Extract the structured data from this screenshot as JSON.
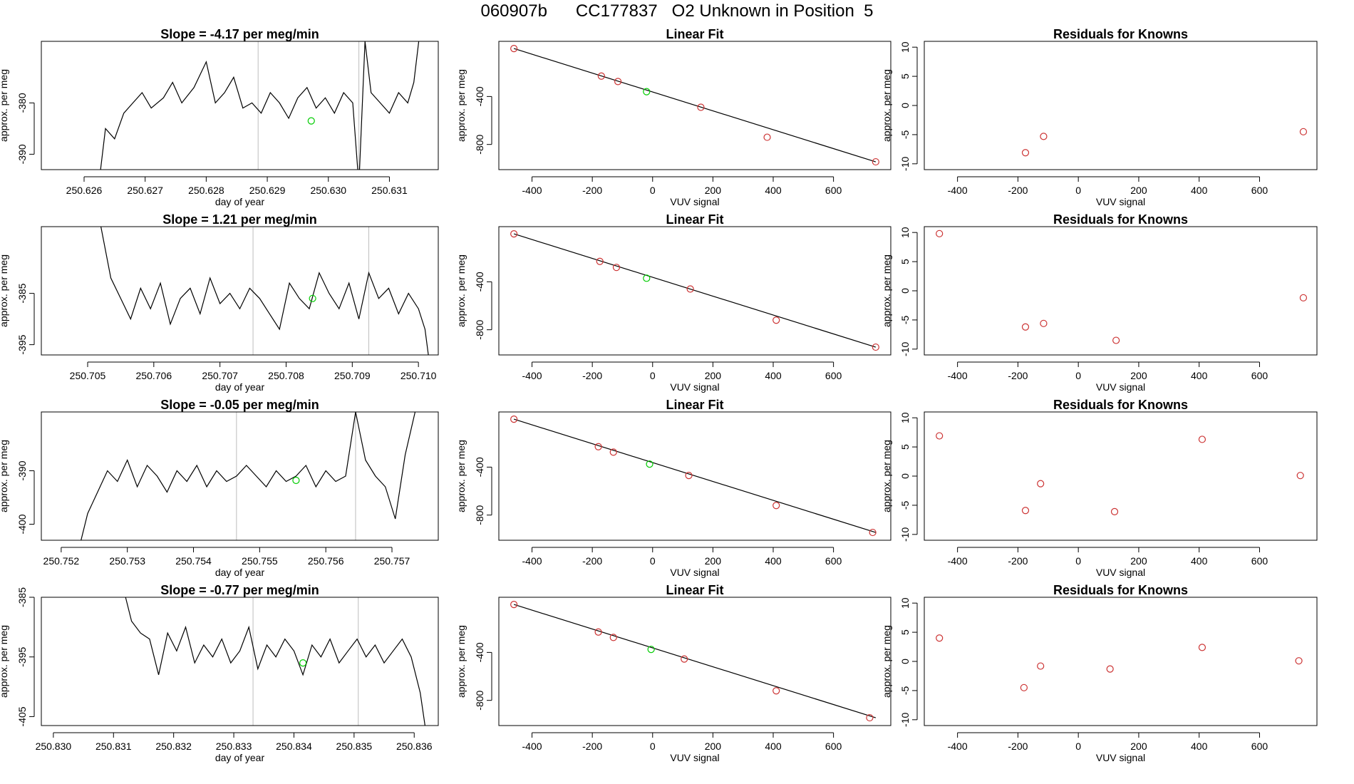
{
  "header": {
    "title": "060907b      CC177837   O2 Unknown in Position  5"
  },
  "colors": {
    "series_line": "#000000",
    "guide_line": "#bdbdbd",
    "unknown_point": "#00cc00",
    "known_point": "#cc3333",
    "axis": "#000000"
  },
  "chart_data": [
    {
      "type": "line",
      "panel": "timeseries",
      "row": 0,
      "title": "Slope =  -4.17  per meg/min",
      "xlabel": "day of year",
      "ylabel": "approx. per meg",
      "xlim": [
        250.6253,
        250.6318
      ],
      "ylim": [
        -393,
        -368
      ],
      "x_ticks": [
        "250.626",
        "250.627",
        "250.628",
        "250.629",
        "250.630",
        "250.631"
      ],
      "x_tick_values": [
        250.626,
        250.627,
        250.628,
        250.629,
        250.63,
        250.631
      ],
      "y_ticks": [
        "-390",
        "-380"
      ],
      "y_tick_values": [
        -390,
        -380
      ],
      "vlines": [
        250.62885,
        250.6305
      ],
      "x": [
        250.62625,
        250.62635,
        250.6265,
        250.62665,
        250.6268,
        250.62695,
        250.6271,
        250.6273,
        250.62745,
        250.6276,
        250.6278,
        250.628,
        250.62815,
        250.6283,
        250.62845,
        250.6286,
        250.62875,
        250.6289,
        250.62905,
        250.6292,
        250.62935,
        250.6295,
        250.62965,
        250.6298,
        250.62995,
        250.6301,
        250.63025,
        250.6304,
        250.6305,
        250.6306,
        250.6307,
        250.63085,
        250.631,
        250.63115,
        250.6313,
        250.6314,
        250.63148
      ],
      "values": [
        -395,
        -385,
        -387,
        -382,
        -380,
        -378,
        -381,
        -379,
        -376,
        -380,
        -377,
        -372,
        -380,
        -378,
        -375,
        -381,
        -380,
        -382,
        -378,
        -380,
        -383,
        -379,
        -377,
        -381,
        -379,
        -382,
        -378,
        -380,
        -396,
        -368,
        -378,
        -380,
        -382,
        -378,
        -380,
        -376,
        -368
      ],
      "unknown_point": {
        "x": 250.62972,
        "y": -383.5
      }
    },
    {
      "type": "line",
      "panel": "timeseries",
      "row": 1,
      "title": "Slope =  1.21  per meg/min",
      "xlabel": "day of year",
      "ylabel": "approx. per meg",
      "xlim": [
        250.7043,
        250.7103
      ],
      "ylim": [
        -397,
        -372
      ],
      "x_ticks": [
        "250.705",
        "250.706",
        "250.707",
        "250.708",
        "250.709",
        "250.710"
      ],
      "x_tick_values": [
        250.705,
        250.706,
        250.707,
        250.708,
        250.709,
        250.71
      ],
      "y_ticks": [
        "-395",
        "-385"
      ],
      "y_tick_values": [
        -395,
        -385
      ],
      "vlines": [
        250.7075,
        250.70925
      ],
      "x": [
        250.7052,
        250.70535,
        250.7055,
        250.70565,
        250.7058,
        250.70595,
        250.7061,
        250.70625,
        250.7064,
        250.70655,
        250.7067,
        250.70685,
        250.707,
        250.70715,
        250.7073,
        250.70745,
        250.7076,
        250.70775,
        250.7079,
        250.70805,
        250.7082,
        250.70835,
        250.7085,
        250.70865,
        250.7088,
        250.70895,
        250.7091,
        250.70925,
        250.7094,
        250.70955,
        250.7097,
        250.70985,
        250.71,
        250.7101,
        250.71015
      ],
      "values": [
        -372,
        -382,
        -386,
        -390,
        -384,
        -388,
        -383,
        -391,
        -386,
        -384,
        -389,
        -382,
        -387,
        -385,
        -388,
        -384,
        -386,
        -389,
        -392,
        -383,
        -386,
        -388,
        -381,
        -385,
        -388,
        -383,
        -390,
        -381,
        -386,
        -384,
        -389,
        -385,
        -388,
        -392,
        -397
      ],
      "unknown_point": {
        "x": 250.7084,
        "y": -386
      }
    },
    {
      "type": "line",
      "panel": "timeseries",
      "row": 2,
      "title": "Slope =  -0.05  per meg/min",
      "xlabel": "day of year",
      "ylabel": "approx. per meg",
      "xlim": [
        250.7517,
        250.7577
      ],
      "ylim": [
        -403,
        -379
      ],
      "x_ticks": [
        "250.752",
        "250.753",
        "250.754",
        "250.755",
        "250.756",
        "250.757"
      ],
      "x_tick_values": [
        250.752,
        250.753,
        250.754,
        250.755,
        250.756,
        250.757
      ],
      "y_ticks": [
        "-400",
        "-390"
      ],
      "y_tick_values": [
        -400,
        -390
      ],
      "vlines": [
        250.75465,
        250.75645
      ],
      "x": [
        250.7523,
        250.7524,
        250.75255,
        250.7527,
        250.75285,
        250.753,
        250.75315,
        250.7533,
        250.75345,
        250.7536,
        250.75375,
        250.7539,
        250.75405,
        250.7542,
        250.75435,
        250.7545,
        250.75465,
        250.7548,
        250.75495,
        250.7551,
        250.75525,
        250.7554,
        250.75555,
        250.7557,
        250.75585,
        250.756,
        250.75615,
        250.7563,
        250.75645,
        250.7566,
        250.75675,
        250.7569,
        250.75705,
        250.7572,
        250.75735
      ],
      "values": [
        -403,
        -398,
        -394,
        -390,
        -392,
        -388,
        -393,
        -389,
        -391,
        -394,
        -390,
        -392,
        -389,
        -393,
        -390,
        -392,
        -391,
        -389,
        -391,
        -393,
        -390,
        -392,
        -391,
        -389,
        -393,
        -390,
        -392,
        -391,
        -379,
        -388,
        -391,
        -393,
        -399,
        -387,
        -379
      ],
      "unknown_point": {
        "x": 250.75555,
        "y": -391.8
      }
    },
    {
      "type": "line",
      "panel": "timeseries",
      "row": 3,
      "title": "Slope =  -0.77  per meg/min",
      "xlabel": "day of year",
      "ylabel": "approx. per meg",
      "xlim": [
        250.8298,
        250.8364
      ],
      "ylim": [
        -406.5,
        -385
      ],
      "x_ticks": [
        "250.830",
        "250.831",
        "250.832",
        "250.833",
        "250.834",
        "250.835",
        "250.836"
      ],
      "x_tick_values": [
        250.83,
        250.831,
        250.832,
        250.833,
        250.834,
        250.835,
        250.836
      ],
      "y_ticks": [
        "-405",
        "-395",
        "-385"
      ],
      "y_tick_values": [
        -405,
        -395,
        -385
      ],
      "vlines": [
        250.83332,
        250.83507
      ],
      "x": [
        250.8312,
        250.8313,
        250.83145,
        250.8316,
        250.83175,
        250.8319,
        250.83205,
        250.8322,
        250.83235,
        250.8325,
        250.83265,
        250.8328,
        250.83295,
        250.8331,
        250.83325,
        250.8334,
        250.83355,
        250.8337,
        250.83385,
        250.834,
        250.83415,
        250.8343,
        250.83445,
        250.8346,
        250.83475,
        250.8349,
        250.83505,
        250.8352,
        250.83535,
        250.8355,
        250.83565,
        250.8358,
        250.83595,
        250.8361,
        250.83618
      ],
      "values": [
        -385,
        -389,
        -391,
        -392,
        -398,
        -391,
        -394,
        -390,
        -396,
        -393,
        -395,
        -392,
        -396,
        -394,
        -390,
        -397,
        -393,
        -395,
        -392,
        -394,
        -398,
        -393,
        -395,
        -392,
        -396,
        -394,
        -392,
        -395,
        -393,
        -396,
        -394,
        -392,
        -395,
        -401,
        -406.5
      ],
      "unknown_point": {
        "x": 250.83415,
        "y": -396
      }
    },
    {
      "type": "scatter",
      "panel": "linear_fit",
      "row": 0,
      "title": "Linear Fit",
      "xlabel": "VUV signal",
      "ylabel": "approx. per meg",
      "xlim": [
        -510,
        790
      ],
      "ylim": [
        -1010,
        60
      ],
      "x_ticks": [
        "-400",
        "-200",
        "0",
        "200",
        "400",
        "600"
      ],
      "x_tick_values": [
        -400,
        -200,
        0,
        200,
        400,
        600
      ],
      "y_ticks": [
        "-800",
        "-400"
      ],
      "y_tick_values": [
        -800,
        -400
      ],
      "fit_line": {
        "x": [
          -460,
          740
        ],
        "y": [
          0,
          -945
        ]
      },
      "known_points": {
        "x": [
          -460,
          -170,
          -115,
          160,
          380,
          740
        ],
        "y": [
          0,
          -230,
          -275,
          -490,
          -740,
          -945
        ]
      },
      "unknown_point": {
        "x": -20,
        "y": -360
      }
    },
    {
      "type": "scatter",
      "panel": "linear_fit",
      "row": 1,
      "title": "Linear Fit",
      "xlabel": "VUV signal",
      "ylabel": "approx. per meg",
      "xlim": [
        -510,
        790
      ],
      "ylim": [
        -1010,
        60
      ],
      "x_ticks": [
        "-400",
        "-200",
        "0",
        "200",
        "400",
        "600"
      ],
      "x_tick_values": [
        -400,
        -200,
        0,
        200,
        400,
        600
      ],
      "y_ticks": [
        "-800",
        "-400"
      ],
      "y_tick_values": [
        -800,
        -400
      ],
      "fit_line": {
        "x": [
          -460,
          740
        ],
        "y": [
          0,
          -945
        ]
      },
      "known_points": {
        "x": [
          -460,
          -175,
          -120,
          125,
          410,
          740
        ],
        "y": [
          0,
          -230,
          -280,
          -460,
          -720,
          -945
        ]
      },
      "unknown_point": {
        "x": -20,
        "y": -370
      }
    },
    {
      "type": "scatter",
      "panel": "linear_fit",
      "row": 2,
      "title": "Linear Fit",
      "xlabel": "VUV signal",
      "ylabel": "approx. per meg",
      "xlim": [
        -510,
        790
      ],
      "ylim": [
        -1010,
        60
      ],
      "x_ticks": [
        "-400",
        "-200",
        "0",
        "200",
        "400",
        "600"
      ],
      "x_tick_values": [
        -400,
        -200,
        0,
        200,
        400,
        600
      ],
      "y_ticks": [
        "-800",
        "-400"
      ],
      "y_tick_values": [
        -800,
        -400
      ],
      "fit_line": {
        "x": [
          -460,
          740
        ],
        "y": [
          0,
          -945
        ]
      },
      "known_points": {
        "x": [
          -460,
          -180,
          -130,
          120,
          410,
          730
        ],
        "y": [
          0,
          -230,
          -275,
          -470,
          -720,
          -945
        ]
      },
      "unknown_point": {
        "x": -10,
        "y": -375
      }
    },
    {
      "type": "scatter",
      "panel": "linear_fit",
      "row": 3,
      "title": "Linear Fit",
      "xlabel": "VUV signal",
      "ylabel": "approx. per meg",
      "xlim": [
        -510,
        790
      ],
      "ylim": [
        -1010,
        60
      ],
      "x_ticks": [
        "-400",
        "-200",
        "0",
        "200",
        "400",
        "600"
      ],
      "x_tick_values": [
        -400,
        -200,
        0,
        200,
        400,
        600
      ],
      "y_ticks": [
        "-800",
        "-400"
      ],
      "y_tick_values": [
        -800,
        -400
      ],
      "fit_line": {
        "x": [
          -460,
          740
        ],
        "y": [
          0,
          -945
        ]
      },
      "known_points": {
        "x": [
          -460,
          -180,
          -130,
          105,
          410,
          720
        ],
        "y": [
          0,
          -230,
          -275,
          -455,
          -720,
          -945
        ]
      },
      "unknown_point": {
        "x": -5,
        "y": -375
      }
    },
    {
      "type": "scatter",
      "panel": "residuals",
      "row": 0,
      "title": "Residuals for Knowns",
      "xlabel": "VUV signal",
      "ylabel": "approx. per meg",
      "xlim": [
        -510,
        790
      ],
      "ylim": [
        -11,
        11
      ],
      "x_ticks": [
        "-400",
        "-200",
        "0",
        "200",
        "400",
        "600"
      ],
      "x_tick_values": [
        -400,
        -200,
        0,
        200,
        400,
        600
      ],
      "y_ticks": [
        "-10",
        "-5",
        "0",
        "5",
        "10"
      ],
      "y_tick_values": [
        -10,
        -5,
        0,
        5,
        10
      ],
      "points": {
        "x": [
          -175,
          -115,
          745
        ],
        "y": [
          -8.1,
          -5.3,
          -4.5
        ]
      }
    },
    {
      "type": "scatter",
      "panel": "residuals",
      "row": 1,
      "title": "Residuals for Knowns",
      "xlabel": "VUV signal",
      "ylabel": "approx. per meg",
      "xlim": [
        -510,
        790
      ],
      "ylim": [
        -11,
        11
      ],
      "x_ticks": [
        "-400",
        "-200",
        "0",
        "200",
        "400",
        "600"
      ],
      "x_tick_values": [
        -400,
        -200,
        0,
        200,
        400,
        600
      ],
      "y_ticks": [
        "-10",
        "-5",
        "0",
        "5",
        "10"
      ],
      "y_tick_values": [
        -10,
        -5,
        0,
        5,
        10
      ],
      "points": {
        "x": [
          -460,
          -175,
          -115,
          125,
          745
        ],
        "y": [
          9.8,
          -6.2,
          -5.6,
          -8.5,
          -1.2
        ]
      }
    },
    {
      "type": "scatter",
      "panel": "residuals",
      "row": 2,
      "title": "Residuals for Knowns",
      "xlabel": "VUV signal",
      "ylabel": "approx. per meg",
      "xlim": [
        -510,
        790
      ],
      "ylim": [
        -11,
        11
      ],
      "x_ticks": [
        "-400",
        "-200",
        "0",
        "200",
        "400",
        "600"
      ],
      "x_tick_values": [
        -400,
        -200,
        0,
        200,
        400,
        600
      ],
      "y_ticks": [
        "-10",
        "-5",
        "0",
        "5",
        "10"
      ],
      "y_tick_values": [
        -10,
        -5,
        0,
        5,
        10
      ],
      "points": {
        "x": [
          -460,
          -175,
          -125,
          120,
          410,
          735
        ],
        "y": [
          6.9,
          -5.9,
          -1.3,
          -6.1,
          6.3,
          0.1
        ]
      }
    },
    {
      "type": "scatter",
      "panel": "residuals",
      "row": 3,
      "title": "Residuals for Knowns",
      "xlabel": "VUV signal",
      "ylabel": "approx. per meg",
      "xlim": [
        -510,
        790
      ],
      "ylim": [
        -11,
        11
      ],
      "x_ticks": [
        "-400",
        "-200",
        "0",
        "200",
        "400",
        "600"
      ],
      "x_tick_values": [
        -400,
        -200,
        0,
        200,
        400,
        600
      ],
      "y_ticks": [
        "-10",
        "-5",
        "0",
        "5",
        "10"
      ],
      "y_tick_values": [
        -10,
        -5,
        0,
        5,
        10
      ],
      "points": {
        "x": [
          -460,
          -180,
          -125,
          105,
          410,
          730
        ],
        "y": [
          4.0,
          -4.5,
          -0.8,
          -1.3,
          2.4,
          0.1
        ]
      }
    }
  ]
}
